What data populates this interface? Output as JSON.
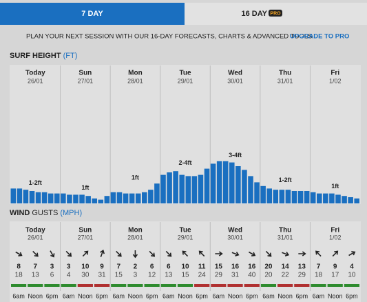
{
  "tabs": [
    {
      "label": "7 DAY"
    },
    {
      "label": "16 DAY",
      "badge": "PRO"
    }
  ],
  "banner": {
    "text": "PLAN YOUR NEXT SESSION WITH OUR 16-DAY FORECASTS, CHARTS & ADVANCED TOOLS",
    "link": "UPGRADE TO PRO"
  },
  "surf": {
    "title": "SURF HEIGHT",
    "unit": "(FT)",
    "color": "#1a6fc0",
    "days": [
      {
        "day": "Today",
        "date": "26/01",
        "label": "1-2ft",
        "heights": [
          1.2,
          1.2,
          1.1,
          1.0,
          0.9,
          0.9,
          0.8,
          0.8
        ]
      },
      {
        "day": "Sun",
        "date": "27/01",
        "label": "1ft",
        "heights": [
          0.8,
          0.7,
          0.7,
          0.7,
          0.6,
          0.4,
          0.3,
          0.6
        ]
      },
      {
        "day": "Mon",
        "date": "28/01",
        "label": "1ft",
        "heights": [
          0.9,
          0.9,
          0.8,
          0.8,
          0.8,
          0.9,
          1.1,
          1.6
        ]
      },
      {
        "day": "Tue",
        "date": "29/01",
        "label": "2-4ft",
        "heights": [
          2.3,
          2.5,
          2.6,
          2.3,
          2.2,
          2.2,
          2.3,
          2.8
        ]
      },
      {
        "day": "Wed",
        "date": "30/01",
        "label": "3-4ft",
        "heights": [
          3.2,
          3.4,
          3.4,
          3.3,
          3.0,
          2.7,
          2.2,
          1.7
        ]
      },
      {
        "day": "Thu",
        "date": "31/01",
        "label": "1-2ft",
        "heights": [
          1.4,
          1.2,
          1.1,
          1.1,
          1.1,
          1.0,
          1.0,
          1.0
        ]
      },
      {
        "day": "Fri",
        "date": "1/02",
        "label": "1ft",
        "heights": [
          0.9,
          0.8,
          0.8,
          0.8,
          0.7,
          0.6,
          0.5,
          0.4
        ]
      }
    ]
  },
  "wind": {
    "title": "WIND",
    "subtitle": "GUSTS",
    "unit": "(MPH)",
    "days": [
      {
        "day": "Today",
        "date": "26/01",
        "times": [
          "6am",
          "Noon",
          "6pm"
        ],
        "speeds": [
          8,
          7,
          3
        ],
        "gusts": [
          18,
          13,
          6
        ],
        "dirs": [
          120,
          135,
          150
        ],
        "ratings": [
          "#2e8b2e",
          "#2e8b2e",
          "#2e8b2e"
        ]
      },
      {
        "day": "Sun",
        "date": "27/01",
        "times": [
          "6am",
          "Noon",
          "6pm"
        ],
        "speeds": [
          3,
          10,
          9
        ],
        "gusts": [
          4,
          30,
          31
        ],
        "dirs": [
          135,
          45,
          20
        ],
        "ratings": [
          "#2e8b2e",
          "#b03030",
          "#b03030"
        ]
      },
      {
        "day": "Mon",
        "date": "28/01",
        "times": [
          "6am",
          "Noon",
          "6pm"
        ],
        "speeds": [
          7,
          2,
          6
        ],
        "gusts": [
          15,
          3,
          12
        ],
        "dirs": [
          135,
          180,
          135
        ],
        "ratings": [
          "#2e8b2e",
          "#2e8b2e",
          "#2e8b2e"
        ]
      },
      {
        "day": "Tue",
        "date": "29/01",
        "times": [
          "6am",
          "Noon",
          "6pm"
        ],
        "speeds": [
          6,
          10,
          11
        ],
        "gusts": [
          13,
          15,
          24
        ],
        "dirs": [
          135,
          315,
          315
        ],
        "ratings": [
          "#2e8b2e",
          "#2e8b2e",
          "#b03030"
        ]
      },
      {
        "day": "Wed",
        "date": "30/01",
        "times": [
          "6am",
          "Noon",
          "6pm"
        ],
        "speeds": [
          15,
          16,
          16
        ],
        "gusts": [
          29,
          31,
          40
        ],
        "dirs": [
          90,
          110,
          120
        ],
        "ratings": [
          "#b03030",
          "#b03030",
          "#b03030"
        ]
      },
      {
        "day": "Thu",
        "date": "31/01",
        "times": [
          "6am",
          "Noon",
          "6pm"
        ],
        "speeds": [
          20,
          14,
          13
        ],
        "gusts": [
          20,
          22,
          29
        ],
        "dirs": [
          135,
          110,
          90
        ],
        "ratings": [
          "#2e8b2e",
          "#b03030",
          "#b03030"
        ]
      },
      {
        "day": "Fri",
        "date": "1/02",
        "times": [
          "6am",
          "Noon",
          "6pm"
        ],
        "speeds": [
          7,
          9,
          4
        ],
        "gusts": [
          18,
          17,
          10
        ],
        "dirs": [
          315,
          45,
          60
        ],
        "ratings": [
          "#2e8b2e",
          "#2e8b2e",
          "#2e8b2e"
        ]
      }
    ]
  }
}
